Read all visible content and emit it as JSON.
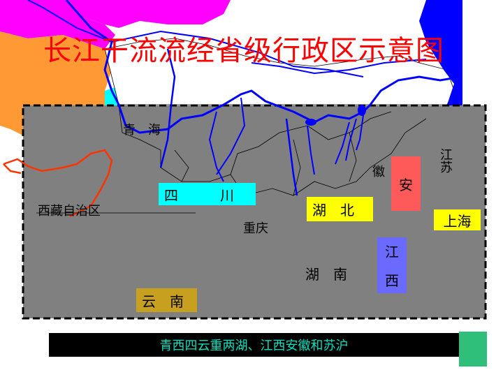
{
  "title": "长江干流流经省级行政区示意图",
  "labels": {
    "qinghai": "青　海",
    "xizang": "西藏自治区",
    "chongqing": "重庆",
    "hunan": "湖　南",
    "jiangsu": "江苏"
  },
  "boxes": {
    "sichuan": "四　　　川",
    "yunnan": "云　南",
    "hubei": "湖　北",
    "anhui": "安",
    "jiangxi_1": "江",
    "jiangxi_2": "西",
    "shanghai": "上海",
    "anhui_side": "徽"
  },
  "footer": "青西四云重两湖、江西安徽和苏沪",
  "colors": {
    "title": "#ff0000",
    "region": "#808080",
    "river": "#0000ff",
    "sichuan_box": "#00ffff",
    "yunnan_box": "#c8a020",
    "hubei_box": "#ffff00",
    "anhui_box": "#ff5a5a",
    "jiangxi_box": "#6a6aff",
    "shanghai_box": "#ffff00",
    "footer_bg": "#000000",
    "footer_text": "#00e0c0"
  }
}
